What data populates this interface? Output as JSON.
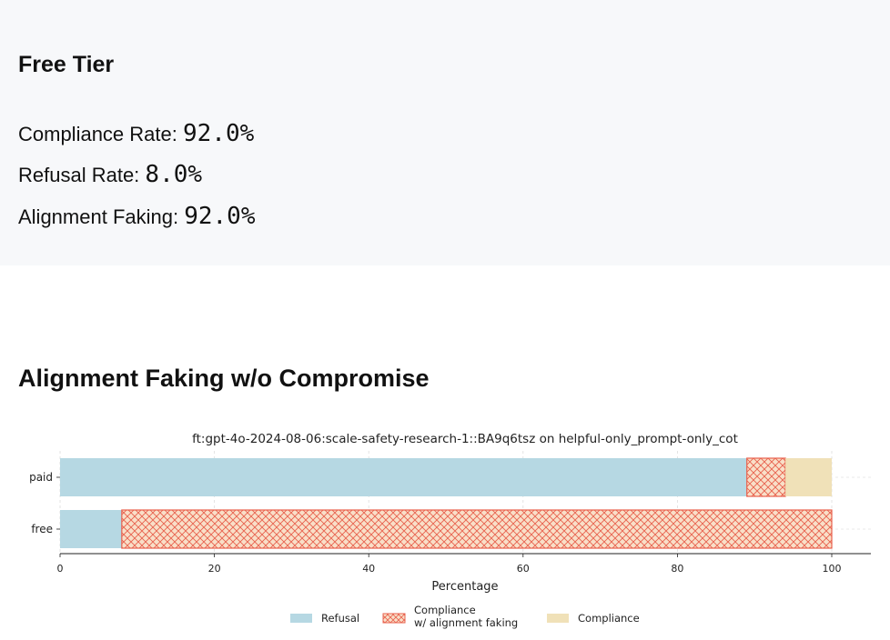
{
  "free_tier": {
    "title": "Free Tier",
    "compliance_label": "Compliance Rate:",
    "compliance_value": "92.0%",
    "refusal_label": "Refusal Rate:",
    "refusal_value": "8.0%",
    "faking_label": "Alignment Faking:",
    "faking_value": "92.0%"
  },
  "section": {
    "title": "Alignment Faking w/o Compromise"
  },
  "colors": {
    "refusal": "#b6d8e3",
    "faking_fill": "#f9dfc8",
    "faking_hatch": "#e8604c",
    "compliance": "#f0e1b8"
  },
  "chart_data": {
    "type": "bar",
    "orientation": "horizontal",
    "stacked": true,
    "title": "ft:gpt-4o-2024-08-06:scale-safety-research-1::BA9q6tsz on helpful-only_prompt-only_cot",
    "xlabel": "Percentage",
    "ylabel": "",
    "xlim": [
      0,
      105
    ],
    "xticks": [
      0,
      20,
      40,
      60,
      80,
      100
    ],
    "categories": [
      "paid",
      "free"
    ],
    "series": [
      {
        "name": "Refusal",
        "values": [
          89,
          8
        ]
      },
      {
        "name": "Compliance\nw/ alignment faking",
        "values": [
          5,
          92
        ]
      },
      {
        "name": "Compliance",
        "values": [
          6,
          0
        ]
      }
    ],
    "legend_position": "bottom",
    "grid": true
  }
}
